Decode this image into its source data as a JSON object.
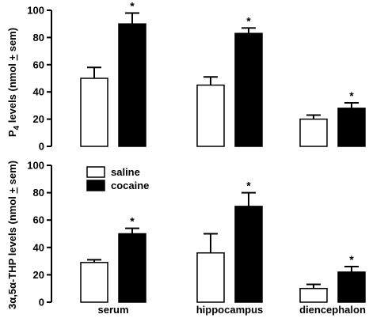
{
  "chart_data": [
    {
      "type": "bar",
      "categories": [
        "serum",
        "hippocampus",
        "diencephalon"
      ],
      "ylabel": "P4 levels (nmol ± sem)",
      "ylabel_main": "P",
      "ylabel_sub": "4",
      "ylabel_rest": " levels (nmol ",
      "ylabel_pm": "+",
      "ylabel_end": " sem)",
      "ylim": [
        0,
        100
      ],
      "yticks": [
        "0",
        "20",
        "40",
        "60",
        "80",
        "100"
      ],
      "series": [
        {
          "name": "saline",
          "values": [
            50,
            45,
            20
          ],
          "errors": [
            8,
            6,
            3
          ]
        },
        {
          "name": "cocaine",
          "values": [
            90,
            83,
            28
          ],
          "errors": [
            8,
            4,
            4
          ]
        }
      ],
      "significance": [
        "*",
        "*",
        "*"
      ],
      "colors": {
        "saline": "#ffffff",
        "cocaine": "#000000"
      }
    },
    {
      "type": "bar",
      "categories": [
        "serum",
        "hippocampus",
        "diencephalon"
      ],
      "ylabel": "3α,5α-THP levels (nmol ± sem)",
      "ylabel_text": "3α,5α-THP levels (nmol ",
      "ylabel_pm": "+",
      "ylabel_end": " sem)",
      "ylim": [
        0,
        100
      ],
      "yticks": [
        "0",
        "20",
        "40",
        "60",
        "80",
        "100"
      ],
      "series": [
        {
          "name": "saline",
          "values": [
            29,
            36,
            10
          ],
          "errors": [
            2,
            14,
            3
          ]
        },
        {
          "name": "cocaine",
          "values": [
            50,
            70,
            22
          ],
          "errors": [
            4,
            10,
            4
          ]
        }
      ],
      "significance": [
        "*",
        "*",
        "*"
      ],
      "colors": {
        "saline": "#ffffff",
        "cocaine": "#000000"
      }
    }
  ],
  "legend": {
    "position": "top-left of lower panel",
    "items": [
      "saline",
      "cocaine"
    ]
  },
  "x_labels": [
    "serum",
    "hippocampus",
    "diencephalon"
  ]
}
